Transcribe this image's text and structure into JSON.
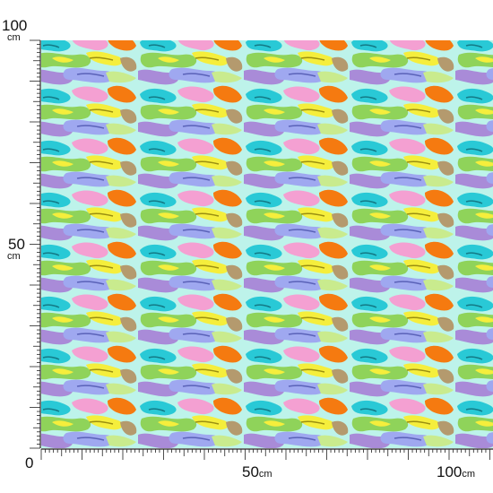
{
  "ruler": {
    "unit": "cm",
    "vertical": {
      "top_value": "100",
      "top_unit": "cm",
      "mid_value": "50",
      "mid_unit": "cm",
      "origin": "0"
    },
    "horizontal": {
      "mid_value": "50",
      "mid_unit": "cm",
      "end_value": "100",
      "end_unit": "cm"
    }
  },
  "fabric": {
    "pattern_icon": "abstract-camouflage-swirl-pattern",
    "background_color": "#bdf3ea",
    "palette": [
      "#29c9d6",
      "#8fd35a",
      "#f5ee3c",
      "#f57a10",
      "#f4a0d2",
      "#a98bd8",
      "#9fa8f0",
      "#b49a6e",
      "#c9eb8e"
    ]
  }
}
